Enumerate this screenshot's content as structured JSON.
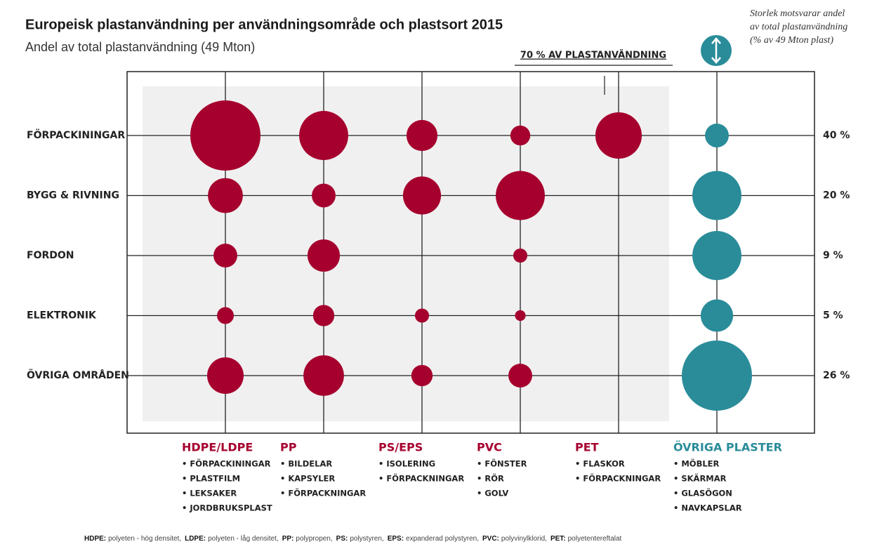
{
  "chart_data": {
    "type": "bubble-grid",
    "title": "Europeisk plastanvändning per användningsområde och plastsort 2015",
    "subtitle": "Andel av total plastanvändning (49 Mton)",
    "annotation": "70 % AV PLASTANVÄNDNING",
    "legend_note": [
      "Storlek motsvarar andel",
      "av total plastanvändning",
      "(% av 49 Mton plast)"
    ],
    "rows": [
      "FÖRPACKININGAR",
      "BYGG & RIVNING",
      "FORDON",
      "ELEKTRONIK",
      "ÖVRIGA OMRÅDEN"
    ],
    "row_totals": [
      40,
      20,
      9,
      5,
      26
    ],
    "row_total_labels": [
      "40 %",
      "20 %",
      "9 %",
      "5 %",
      "26 %"
    ],
    "series": [
      {
        "name": "HDPE/LDPE",
        "color": "#a6002e",
        "items": [
          "• FÖRPACKININGAR",
          "• PLASTFILM",
          "• LEKSAKER",
          "• JORDBRUKSPLAST"
        ],
        "values": [
          17.4,
          4.3,
          2.0,
          1.0,
          4.7
        ]
      },
      {
        "name": "PP",
        "color": "#a6002e",
        "items": [
          "• BILDELAR",
          "• KAPSYLER",
          "• FÖRPACKNINGAR"
        ],
        "values": [
          8.5,
          2.0,
          3.7,
          1.6,
          5.8
        ]
      },
      {
        "name": "PS/EPS",
        "color": "#a6002e",
        "items": [
          "• ISOLERING",
          "• FÖRPACKNINGAR"
        ],
        "values": [
          3.4,
          5.1,
          null,
          0.7,
          1.6
        ]
      },
      {
        "name": "PVC",
        "color": "#a6002e",
        "items": [
          "• FÖNSTER",
          "• RÖR",
          "• GOLV"
        ],
        "values": [
          1.4,
          8.5,
          0.7,
          0.4,
          2.0
        ]
      },
      {
        "name": "PET",
        "color": "#a6002e",
        "items": [
          "• FLASKOR",
          "• FÖRPACKNINGAR"
        ],
        "values": [
          7.6,
          null,
          null,
          null,
          null
        ]
      },
      {
        "name": "ÖVRIGA PLASTER",
        "color": "#2a8c99",
        "items": [
          "• MÖBLER",
          "• SKÄRMAR",
          "• GLASÖGON",
          "• NAVKAPSLAR"
        ],
        "values": [
          2.0,
          8.5,
          8.5,
          3.7,
          17.4
        ]
      }
    ],
    "footnote": [
      {
        "term": "HDPE:",
        "def": "polyeten - hög densitet,"
      },
      {
        "term": "LDPE:",
        "def": "polyeten - låg densitet,"
      },
      {
        "term": "PP:",
        "def": "polypropen,"
      },
      {
        "term": "PS:",
        "def": "polystyren,"
      },
      {
        "term": "EPS:",
        "def": "expanderad polystyren,"
      },
      {
        "term": "PVC:",
        "def": "polyvinylklorid,"
      },
      {
        "term": "PET:",
        "def": "polyetentereftalat"
      }
    ]
  }
}
